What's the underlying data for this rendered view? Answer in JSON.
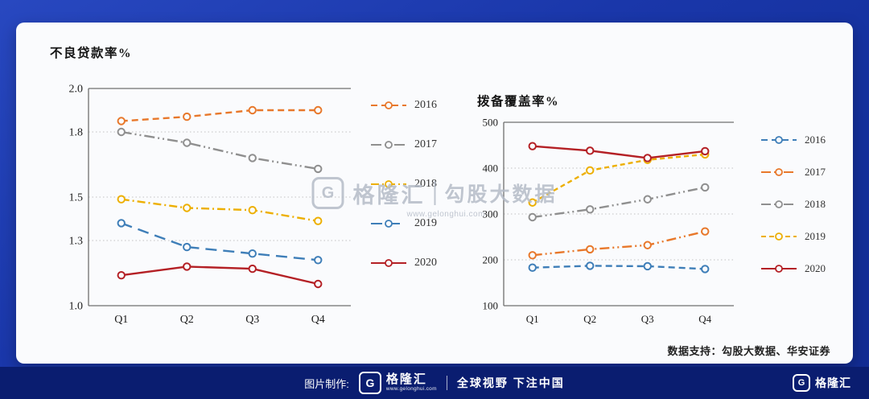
{
  "watermark": {
    "logo_letter": "G",
    "brand": "格隆汇",
    "name": "勾股大数据",
    "url": "www.gelonghui.com"
  },
  "source_note": "数据支持：勾股大数据、华安证券",
  "footer": {
    "label": "图片制作:",
    "logo_letter": "G",
    "brand": "格隆汇",
    "brand_url": "www.gelonghui.com",
    "slogan": "全球视野 下注中国",
    "right_logo_letter": "G",
    "right_brand": "格隆汇"
  },
  "chart_data": [
    {
      "type": "line",
      "title": "不良贷款率%",
      "categories": [
        "Q1",
        "Q2",
        "Q3",
        "Q4"
      ],
      "ylim": [
        1.0,
        2.0
      ],
      "yticks": [
        2.0,
        1.8,
        1.5,
        1.3,
        1.0
      ],
      "ytick_labels": [
        "2.0",
        "1.8",
        "1.5",
        "1.3",
        "1.0"
      ],
      "grid": "dotted horizontal gridlines, solid top and bottom border",
      "legend_position": "right",
      "series": [
        {
          "name": "2016",
          "color": "#E8782B",
          "dash": "8 5",
          "values": [
            1.85,
            1.87,
            1.9,
            1.9
          ]
        },
        {
          "name": "2017",
          "color": "#8F8F8F",
          "dash": "13 4 2 4 2 4",
          "values": [
            1.8,
            1.75,
            1.68,
            1.63
          ]
        },
        {
          "name": "2018",
          "color": "#EDAF00",
          "dash": "10 4 2 4",
          "values": [
            1.49,
            1.45,
            1.44,
            1.39
          ]
        },
        {
          "name": "2019",
          "color": "#3E7EB8",
          "dash": "14 8",
          "values": [
            1.38,
            1.27,
            1.24,
            1.21
          ]
        },
        {
          "name": "2020",
          "color": "#B42025",
          "dash": "",
          "values": [
            1.14,
            1.18,
            1.17,
            1.1
          ]
        }
      ]
    },
    {
      "type": "line",
      "title": "拨备覆盖率%",
      "categories": [
        "Q1",
        "Q2",
        "Q3",
        "Q4"
      ],
      "ylim": [
        100,
        500
      ],
      "yticks": [
        500,
        400,
        300,
        200,
        100
      ],
      "ytick_labels": [
        "500",
        "400",
        "300",
        "200",
        "100"
      ],
      "grid": "dotted horizontal gridlines, solid top and bottom border",
      "legend_position": "right",
      "series": [
        {
          "name": "2016",
          "color": "#3E7EB8",
          "dash": "8 5",
          "values": [
            183,
            187,
            186,
            180
          ]
        },
        {
          "name": "2017",
          "color": "#E8782B",
          "dash": "12 4 2 4 2 4",
          "values": [
            210,
            223,
            232,
            262
          ]
        },
        {
          "name": "2018",
          "color": "#8F8F8F",
          "dash": "12 4 2 4 2 4",
          "values": [
            293,
            310,
            332,
            358
          ]
        },
        {
          "name": "2019",
          "color": "#EDAF00",
          "dash": "6 4",
          "values": [
            325,
            395,
            418,
            430
          ]
        },
        {
          "name": "2020",
          "color": "#B42025",
          "dash": "",
          "values": [
            448,
            438,
            422,
            437
          ]
        }
      ]
    }
  ]
}
